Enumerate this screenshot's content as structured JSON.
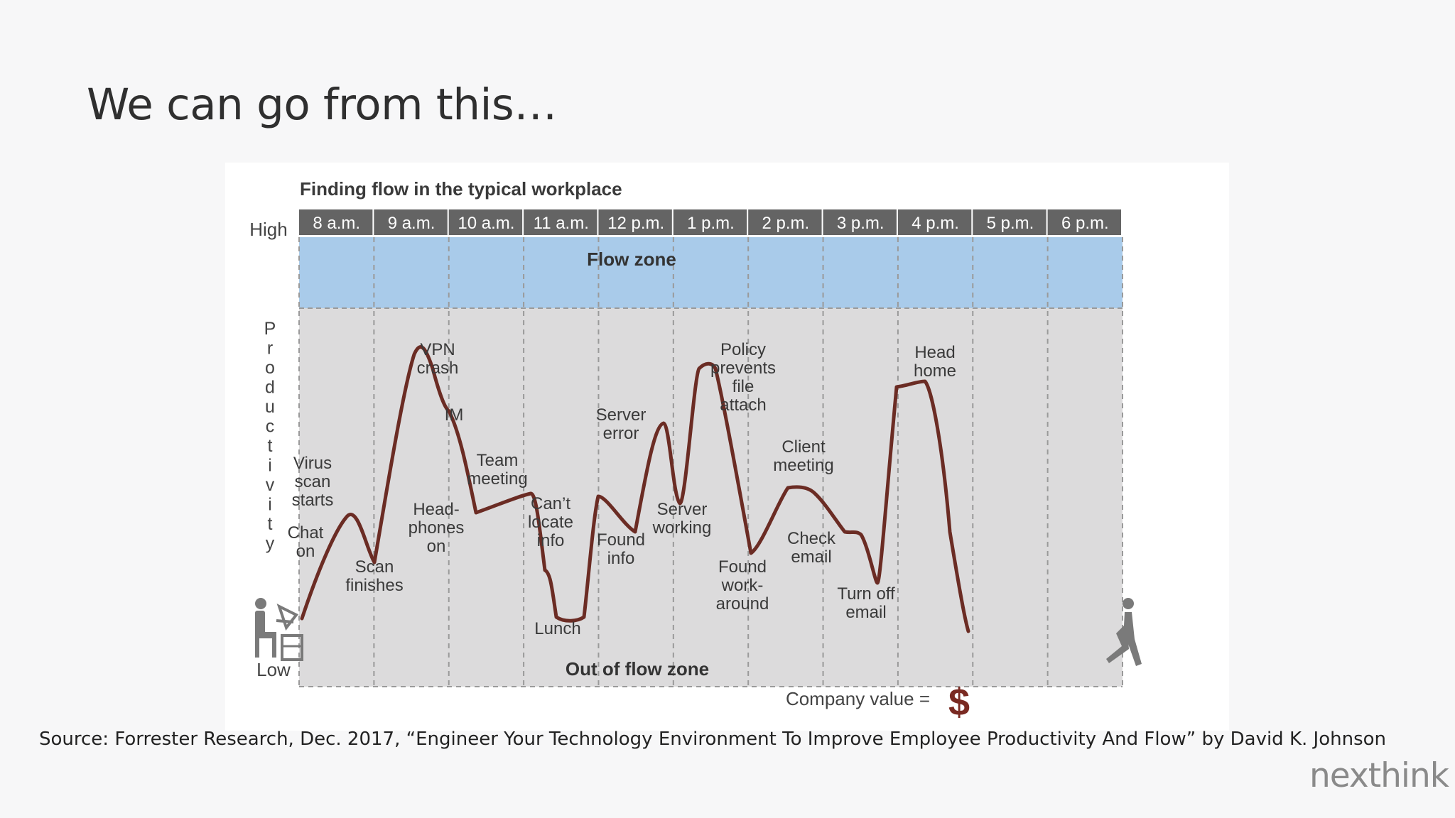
{
  "slide": {
    "title": "We can go from this…",
    "source": "Source: Forrester Research, Dec. 2017, “Engineer Your Technology Environment To Improve Employee Productivity And Flow” by David K. Johnson",
    "logo": "nexthink"
  },
  "figure": {
    "title": "Finding flow in the typical workplace",
    "hours": [
      "8 a.m.",
      "9 a.m.",
      "10 a.m.",
      "11 a.m.",
      "12 p.m.",
      "1 p.m.",
      "2 p.m.",
      "3 p.m.",
      "4 p.m.",
      "5 p.m.",
      "6 p.m."
    ],
    "y_high": "High",
    "y_low": "Low",
    "y_axis_letters": [
      "P",
      "r",
      "o",
      "d",
      "u",
      "c",
      "t",
      "i",
      "v",
      "i",
      "t",
      "y"
    ],
    "flow_zone": "Flow zone",
    "out_of_flow_zone": "Out of flow zone",
    "company_value": "Company value =",
    "currency_symbol": "$",
    "colors": {
      "header_band": "#646464",
      "flow_zone": "#a9cbea",
      "out_zone": "#dcdbdc",
      "curve": "#6b2c24",
      "dollar": "#7a2a22",
      "icon": "#7a7a7a"
    },
    "icons": [
      "person-at-desk-icon",
      "person-leaving-icon"
    ],
    "annotations": [
      {
        "id": "virus-scan",
        "lines": [
          "Virus",
          "scan",
          "starts"
        ]
      },
      {
        "id": "chat-on",
        "lines": [
          "Chat",
          "on"
        ]
      },
      {
        "id": "scan-finishes",
        "lines": [
          "Scan",
          "finishes"
        ]
      },
      {
        "id": "vpn-crash",
        "lines": [
          "VPN",
          "crash"
        ]
      },
      {
        "id": "im",
        "lines": [
          "IM"
        ]
      },
      {
        "id": "headphones-on",
        "lines": [
          "Head-",
          "phones",
          "on"
        ]
      },
      {
        "id": "team-meeting",
        "lines": [
          "Team",
          "meeting"
        ]
      },
      {
        "id": "cant-locate-info",
        "lines": [
          "Can’t",
          "locate",
          "info"
        ]
      },
      {
        "id": "lunch",
        "lines": [
          "Lunch"
        ]
      },
      {
        "id": "server-error",
        "lines": [
          "Server",
          "error"
        ]
      },
      {
        "id": "found-info",
        "lines": [
          "Found",
          "info"
        ]
      },
      {
        "id": "server-working",
        "lines": [
          "Server",
          "working"
        ]
      },
      {
        "id": "policy-prevents",
        "lines": [
          "Policy",
          "prevents",
          "file",
          "attach"
        ]
      },
      {
        "id": "found-workaround",
        "lines": [
          "Found",
          "work-",
          "around"
        ]
      },
      {
        "id": "client-meeting",
        "lines": [
          "Client",
          "meeting"
        ]
      },
      {
        "id": "check-email",
        "lines": [
          "Check",
          "email"
        ]
      },
      {
        "id": "turn-off-email",
        "lines": [
          "Turn off",
          "email"
        ]
      },
      {
        "id": "head-home",
        "lines": [
          "Head",
          "home"
        ]
      }
    ]
  }
}
